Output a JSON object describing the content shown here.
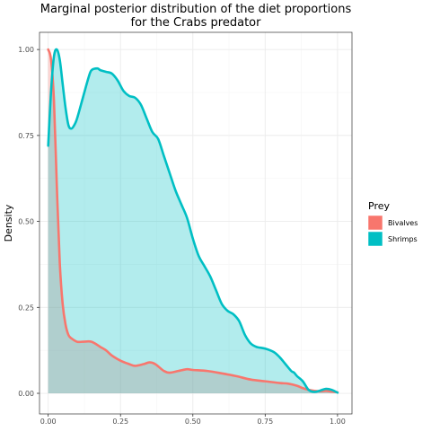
{
  "chart_data": {
    "type": "area",
    "title": "Marginal posterior distribution of the diet proportions\nfor the Crabs predator",
    "xlabel": "",
    "ylabel": "Density",
    "xlim": [
      -0.03,
      1.05
    ],
    "ylim": [
      -0.06,
      1.05
    ],
    "x_ticks": [
      0.0,
      0.25,
      0.5,
      0.75,
      1.0
    ],
    "x_tick_labels": [
      "0.00",
      "0.25",
      "0.50",
      "0.75",
      "1.00"
    ],
    "y_ticks": [
      0.0,
      0.25,
      0.5,
      0.75,
      1.0
    ],
    "y_tick_labels": [
      "0.00",
      "0.25",
      "0.50",
      "0.75",
      "1.00"
    ],
    "grid": true,
    "legend": {
      "title": "Prey",
      "position": "right"
    },
    "series": [
      {
        "name": "Bivalves",
        "color": "#F8766D",
        "x": [
          0.0,
          0.01,
          0.02,
          0.03,
          0.04,
          0.05,
          0.06,
          0.07,
          0.08,
          0.1,
          0.12,
          0.15,
          0.18,
          0.2,
          0.22,
          0.25,
          0.28,
          0.3,
          0.33,
          0.35,
          0.37,
          0.4,
          0.42,
          0.45,
          0.48,
          0.5,
          0.55,
          0.6,
          0.65,
          0.7,
          0.75,
          0.8,
          0.83,
          0.86,
          0.88,
          0.9,
          0.92,
          0.94,
          0.96,
          0.98,
          1.0
        ],
        "values": [
          1.0,
          0.97,
          0.85,
          0.6,
          0.38,
          0.26,
          0.2,
          0.17,
          0.16,
          0.15,
          0.15,
          0.15,
          0.135,
          0.125,
          0.11,
          0.095,
          0.085,
          0.08,
          0.085,
          0.09,
          0.085,
          0.065,
          0.06,
          0.065,
          0.07,
          0.068,
          0.065,
          0.058,
          0.05,
          0.04,
          0.035,
          0.03,
          0.028,
          0.022,
          0.015,
          0.01,
          0.007,
          0.006,
          0.007,
          0.005,
          0.003
        ]
      },
      {
        "name": "Shrimps",
        "color": "#00BFC4",
        "x": [
          0.0,
          0.01,
          0.02,
          0.03,
          0.04,
          0.05,
          0.06,
          0.07,
          0.08,
          0.09,
          0.1,
          0.12,
          0.14,
          0.15,
          0.17,
          0.18,
          0.2,
          0.22,
          0.24,
          0.26,
          0.28,
          0.3,
          0.32,
          0.34,
          0.36,
          0.38,
          0.4,
          0.42,
          0.44,
          0.46,
          0.48,
          0.5,
          0.52,
          0.54,
          0.56,
          0.58,
          0.6,
          0.62,
          0.64,
          0.66,
          0.68,
          0.7,
          0.72,
          0.75,
          0.78,
          0.8,
          0.82,
          0.84,
          0.85,
          0.86,
          0.88,
          0.9,
          0.92,
          0.94,
          0.96,
          0.98,
          1.0
        ],
        "values": [
          0.72,
          0.88,
          0.98,
          1.0,
          0.97,
          0.9,
          0.83,
          0.78,
          0.77,
          0.78,
          0.8,
          0.86,
          0.92,
          0.94,
          0.945,
          0.94,
          0.935,
          0.93,
          0.91,
          0.88,
          0.865,
          0.86,
          0.84,
          0.8,
          0.76,
          0.74,
          0.69,
          0.64,
          0.59,
          0.55,
          0.51,
          0.45,
          0.4,
          0.37,
          0.34,
          0.3,
          0.26,
          0.24,
          0.23,
          0.21,
          0.17,
          0.145,
          0.135,
          0.13,
          0.12,
          0.105,
          0.085,
          0.065,
          0.06,
          0.05,
          0.035,
          0.01,
          0.004,
          0.008,
          0.013,
          0.01,
          0.002
        ]
      }
    ]
  }
}
